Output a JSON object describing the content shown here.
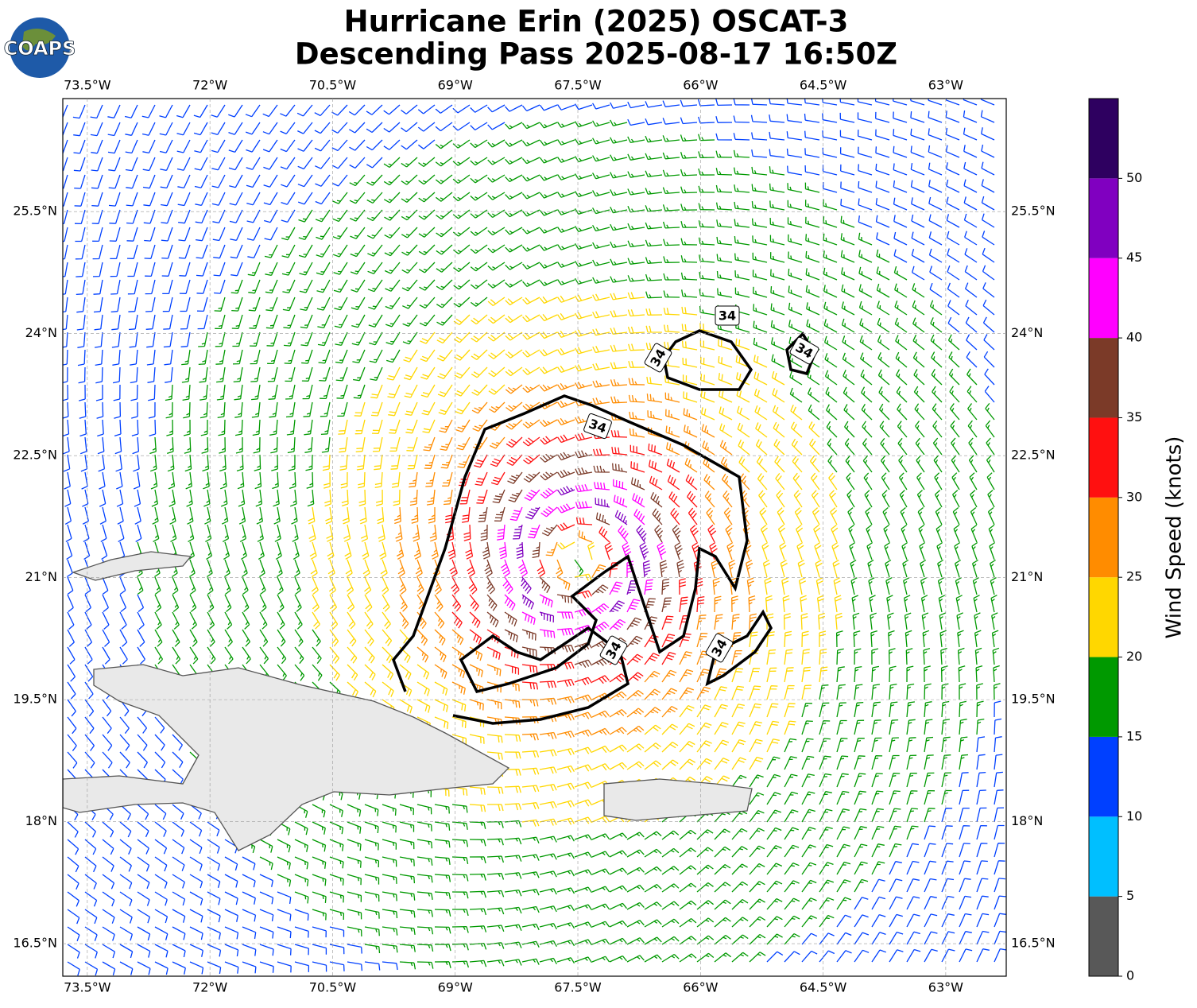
{
  "chart_data": {
    "type": "map",
    "title": "Hurricane Erin (2025) OSCAT-3",
    "subtitle": "Descending Pass 2025-08-17 16:50Z",
    "logo_text": "COAPS",
    "xlim": [
      -73.8,
      -62.26
    ],
    "ylim": [
      16.1,
      26.89
    ],
    "grid": true,
    "xticks": [
      {
        "value": -73.5,
        "label": "73.5°W"
      },
      {
        "value": -72,
        "label": "72°W"
      },
      {
        "value": -70.5,
        "label": "70.5°W"
      },
      {
        "value": -69,
        "label": "69°W"
      },
      {
        "value": -67.5,
        "label": "67.5°W"
      },
      {
        "value": -66,
        "label": "66°W"
      },
      {
        "value": -64.5,
        "label": "64.5°W"
      },
      {
        "value": -63,
        "label": "63°W"
      }
    ],
    "yticks": [
      {
        "value": 16.5,
        "label": "16.5°N"
      },
      {
        "value": 18,
        "label": "18°N"
      },
      {
        "value": 19.5,
        "label": "19.5°N"
      },
      {
        "value": 21,
        "label": "21°N"
      },
      {
        "value": 22.5,
        "label": "22.5°N"
      },
      {
        "value": 24,
        "label": "24°N"
      },
      {
        "value": 25.5,
        "label": "25.5°N"
      }
    ],
    "contour_level": 34,
    "colorbar": {
      "label": "Wind Speed (knots)",
      "lim": [
        0,
        55
      ],
      "ticks": [
        0,
        5,
        10,
        15,
        20,
        25,
        30,
        35,
        40,
        45,
        50
      ],
      "bounds": [
        0,
        5,
        10,
        15,
        20,
        25,
        30,
        35,
        40,
        45,
        50,
        55
      ],
      "colors": [
        "#585858",
        "#00bfff",
        "#0040ff",
        "#009900",
        "#ffd700",
        "#ff8c00",
        "#ff1010",
        "#7b3a28",
        "#ff00ff",
        "#8000c0",
        "#2e0060"
      ]
    }
  }
}
